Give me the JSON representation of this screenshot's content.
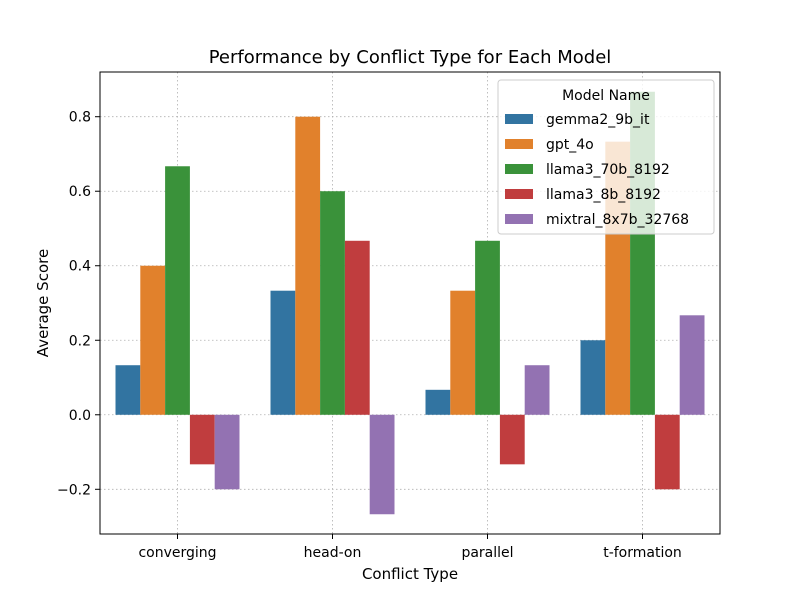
{
  "chart_data": {
    "type": "bar",
    "title": "Performance by Conflict Type for Each Model",
    "xlabel": "Conflict Type",
    "ylabel": "Average Score",
    "categories": [
      "converging",
      "head-on",
      "parallel",
      "t-formation"
    ],
    "ylim": [
      -0.32,
      0.92
    ],
    "yticks": [
      -0.2,
      0.0,
      0.2,
      0.4,
      0.6,
      0.8
    ],
    "ytick_labels": [
      "−0.2",
      "0.0",
      "0.2",
      "0.4",
      "0.6",
      "0.8"
    ],
    "grid": true,
    "legend": {
      "title": "Model Name",
      "placement": "top-right"
    },
    "series": [
      {
        "name": "gemma2_9b_it",
        "color": "#3274a1",
        "values": [
          0.133,
          0.333,
          0.067,
          0.2
        ]
      },
      {
        "name": "gpt_4o",
        "color": "#e1812c",
        "values": [
          0.4,
          0.8,
          0.333,
          0.733
        ]
      },
      {
        "name": "llama3_70b_8192",
        "color": "#3a923a",
        "values": [
          0.667,
          0.6,
          0.467,
          0.867
        ]
      },
      {
        "name": "llama3_8b_8192",
        "color": "#c03d3e",
        "values": [
          -0.133,
          0.467,
          -0.133,
          -0.2
        ]
      },
      {
        "name": "mixtral_8x7b_32768",
        "color": "#9372b2",
        "values": [
          -0.2,
          -0.267,
          0.133,
          0.267
        ]
      }
    ]
  }
}
